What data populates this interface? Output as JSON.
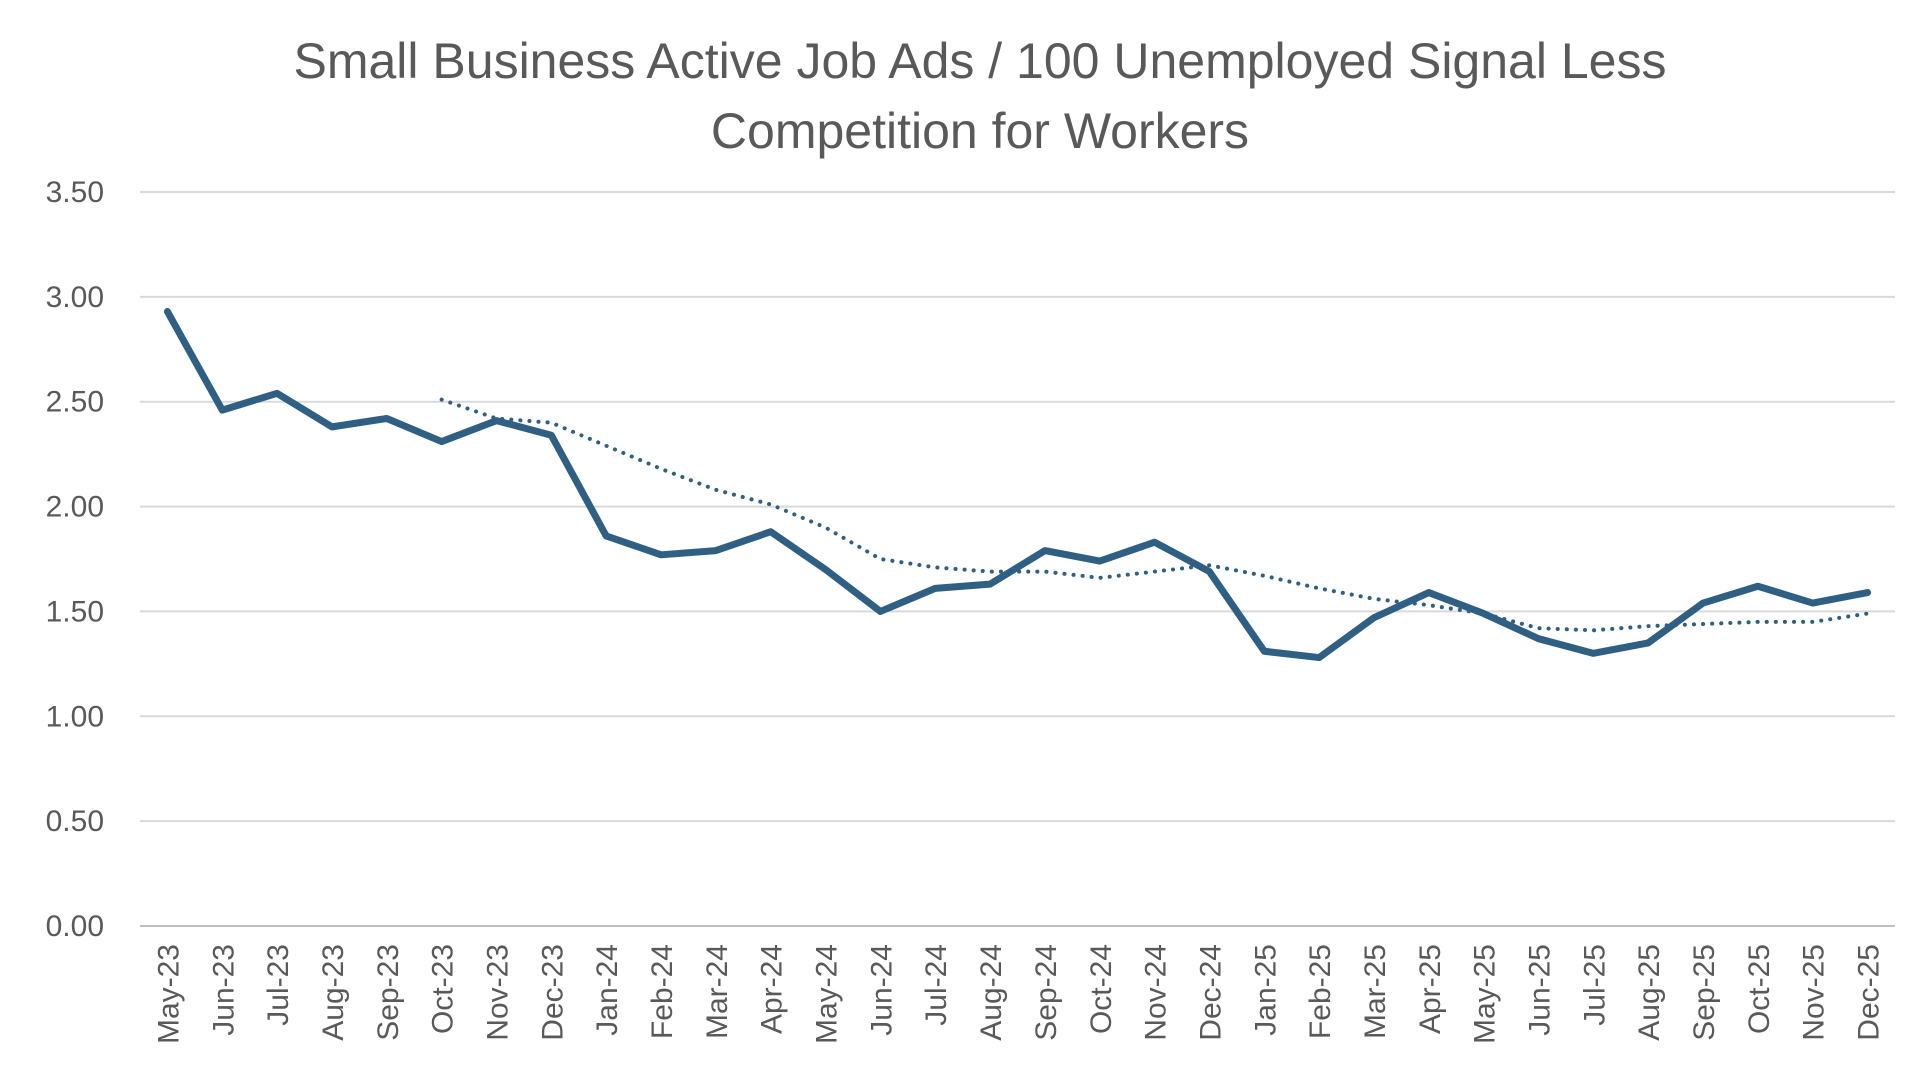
{
  "chart_data": {
    "type": "line",
    "title_lines": [
      "Small Business Active Job Ads / 100 Unemployed Signal Less",
      "Competition for Workers"
    ],
    "xlabel": "",
    "ylabel": "",
    "ylim": [
      0,
      3.5
    ],
    "yticks": [
      "0.00",
      "0.50",
      "1.00",
      "1.50",
      "2.00",
      "2.50",
      "3.00",
      "3.50"
    ],
    "grid": true,
    "legend": "none",
    "categories": [
      "May-23",
      "Jun-23",
      "Jul-23",
      "Aug-23",
      "Sep-23",
      "Oct-23",
      "Nov-23",
      "Dec-23",
      "Jan-24",
      "Feb-24",
      "Mar-24",
      "Apr-24",
      "May-24",
      "Jun-24",
      "Jul-24",
      "Aug-24",
      "Sep-24",
      "Oct-24",
      "Nov-24",
      "Dec-24",
      "Jan-25",
      "Feb-25",
      "Mar-25",
      "Apr-25",
      "May-25",
      "Jun-25",
      "Jul-25",
      "Aug-25",
      "Sep-25",
      "Oct-25",
      "Nov-25",
      "Dec-25"
    ],
    "series": [
      {
        "style": "solid",
        "color": "#2f5f82",
        "values": [
          2.93,
          2.46,
          2.54,
          2.38,
          2.42,
          2.31,
          2.41,
          2.34,
          1.86,
          1.77,
          1.79,
          1.88,
          1.7,
          1.5,
          1.61,
          1.63,
          1.79,
          1.74,
          1.83,
          1.69,
          1.31,
          1.28,
          1.47,
          1.59,
          1.49,
          1.37,
          1.3,
          1.35,
          1.54,
          1.62,
          1.54,
          1.59
        ]
      },
      {
        "style": "dotted",
        "color": "#2f5f82",
        "values": [
          null,
          null,
          null,
          null,
          null,
          2.51,
          2.42,
          2.4,
          2.29,
          2.18,
          2.08,
          2.01,
          1.9,
          1.75,
          1.71,
          1.69,
          1.69,
          1.66,
          1.69,
          1.72,
          1.67,
          1.61,
          1.56,
          1.53,
          1.49,
          1.42,
          1.41,
          1.43,
          1.44,
          1.45,
          1.45,
          1.49
        ]
      }
    ]
  }
}
